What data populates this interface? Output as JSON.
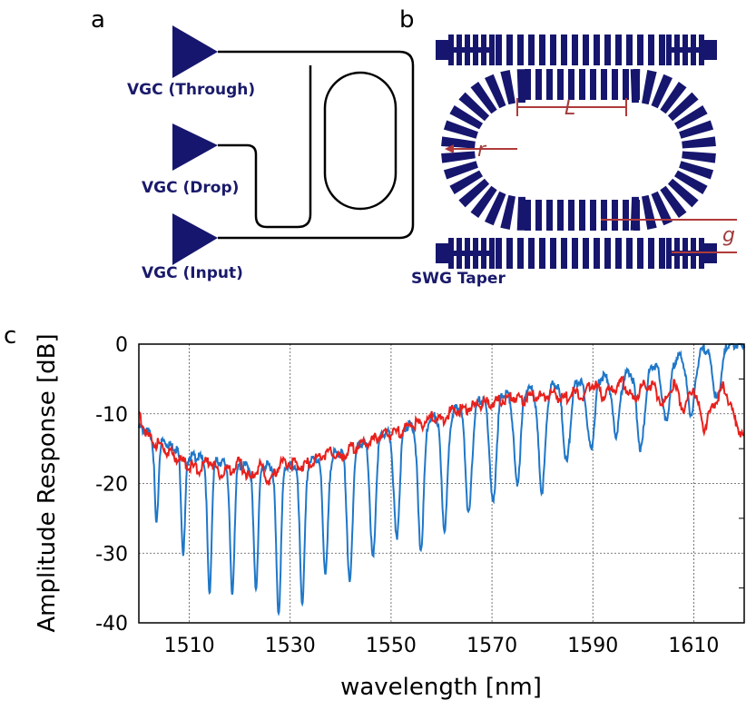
{
  "panels": {
    "a": "a",
    "b": "b",
    "c": "c"
  },
  "panel_a": {
    "labels": {
      "through": "VGC (Through)",
      "drop": "VGC (Drop)",
      "input": "VGC (Input)"
    }
  },
  "panel_b": {
    "labels": {
      "L": "L",
      "r": "r",
      "g": "g",
      "taper": "SWG Taper"
    }
  },
  "colors": {
    "navy": "#16166e",
    "dim": "#b03a3a",
    "blue": "#1f77c8",
    "red": "#e8201c"
  },
  "chart_data": {
    "type": "line",
    "xlabel": "wavelength [nm]",
    "ylabel": "Amplitude Response [dB]",
    "xlim": [
      1500,
      1620
    ],
    "ylim": [
      -40,
      0
    ],
    "xticks": [
      1510,
      1530,
      1550,
      1570,
      1590,
      1610
    ],
    "yticks": [
      0,
      -10,
      -20,
      -30,
      -40
    ],
    "grid": true,
    "series": [
      {
        "name": "Through",
        "color": "#1f77c8",
        "baseline_x": [
          1500,
          1510,
          1520,
          1530,
          1540,
          1550,
          1560,
          1570,
          1580,
          1590,
          1600,
          1610,
          1615,
          1620
        ],
        "baseline_y": [
          -12,
          -16,
          -17.5,
          -17.5,
          -15.5,
          -12.5,
          -10,
          -7.5,
          -6,
          -5,
          -3.5,
          -1,
          0,
          0
        ],
        "dips_x": [
          1503.5,
          1508.8,
          1514,
          1518.5,
          1523.2,
          1527.7,
          1532.4,
          1537,
          1541.8,
          1546.4,
          1551.1,
          1555.9,
          1560.6,
          1565.4,
          1570.2,
          1575,
          1579.9,
          1584.8,
          1589.6,
          1594.6,
          1599.5,
          1604.5,
          1609.5,
          1614.6
        ],
        "dips_y": [
          -26,
          -30,
          -36,
          -36,
          -35,
          -38.5,
          -37,
          -33,
          -34.5,
          -31,
          -28,
          -29.5,
          -26.5,
          -24.5,
          -23,
          -20,
          -21,
          -17,
          -15,
          -13,
          -15,
          -11,
          -10,
          -8
        ]
      },
      {
        "name": "Drop",
        "color": "#e8201c",
        "x": [
          1500,
          1502,
          1504,
          1506,
          1508,
          1510,
          1512,
          1514,
          1516,
          1518,
          1520,
          1522,
          1524,
          1526,
          1528,
          1530,
          1532,
          1534,
          1536,
          1538,
          1540,
          1542,
          1544,
          1546,
          1548,
          1550,
          1552,
          1554,
          1556,
          1558,
          1560,
          1562,
          1564,
          1566,
          1568,
          1570,
          1572,
          1574,
          1576,
          1578,
          1580,
          1582,
          1584,
          1586,
          1588,
          1590,
          1592,
          1594,
          1596,
          1598,
          1600,
          1602,
          1604,
          1606,
          1608,
          1610,
          1612,
          1614,
          1616,
          1618,
          1620
        ],
        "y": [
          -10,
          -13.5,
          -14.5,
          -15.5,
          -16.5,
          -17.5,
          -18,
          -16.5,
          -18.5,
          -18,
          -17,
          -19.5,
          -17.5,
          -20,
          -17,
          -17,
          -17.5,
          -17,
          -16,
          -15.5,
          -16.5,
          -15,
          -14.5,
          -14,
          -13,
          -13,
          -12.5,
          -11.5,
          -11.5,
          -10.5,
          -11,
          -9.5,
          -9.5,
          -9,
          -8.5,
          -8.5,
          -8,
          -7.5,
          -8,
          -7.5,
          -7.5,
          -7,
          -8,
          -7,
          -7.5,
          -5.5,
          -7.5,
          -6.5,
          -5.5,
          -8,
          -6,
          -6,
          -9,
          -5.5,
          -9.5,
          -6,
          -12,
          -8.5,
          -6,
          -10.5,
          -14
        ]
      }
    ]
  }
}
